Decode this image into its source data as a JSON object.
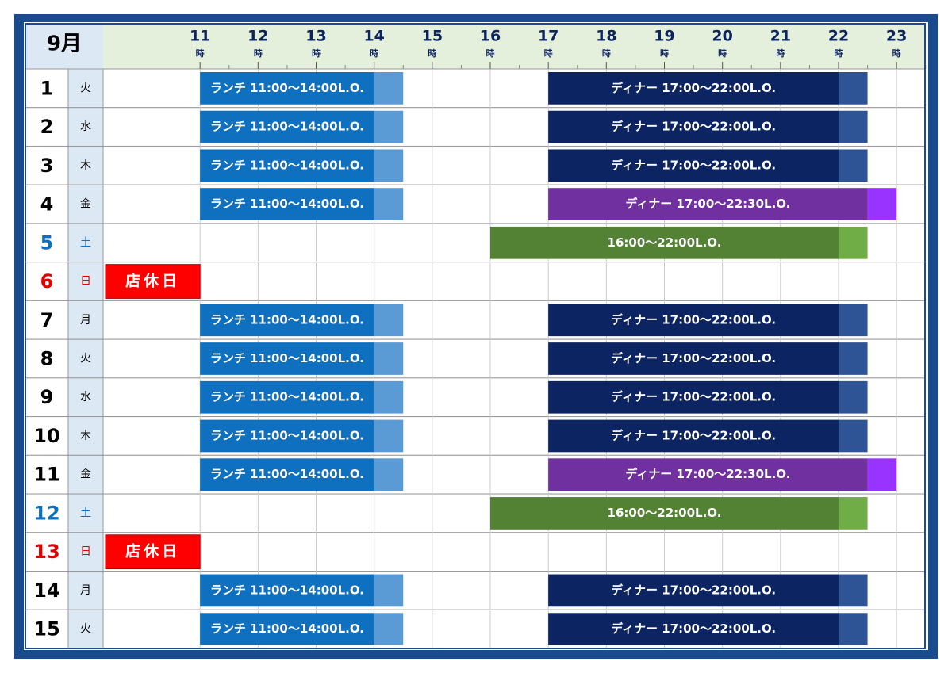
{
  "header": {
    "month": "9月",
    "hour_suffix": "時",
    "hours": [
      11,
      12,
      13,
      14,
      15,
      16,
      17,
      18,
      19,
      20,
      21,
      22,
      23
    ],
    "xlim": [
      9.33,
      23.49
    ]
  },
  "rows": [
    {
      "day": "1",
      "weekday": "火",
      "color": "#000000",
      "bars": [
        {
          "label": "ランチ 11:00〜14:00L.O.",
          "start": 11,
          "lo": 14,
          "end": 14.5,
          "color": "#1070c0",
          "tail_color": "#5b9bd5"
        },
        {
          "label": "ディナー 17:00〜22:00L.O.",
          "start": 17,
          "lo": 22,
          "end": 22.5,
          "color": "#0c2461",
          "tail_color": "#2f5496"
        }
      ]
    },
    {
      "day": "2",
      "weekday": "水",
      "color": "#000000",
      "bars": [
        {
          "label": "ランチ 11:00〜14:00L.O.",
          "start": 11,
          "lo": 14,
          "end": 14.5,
          "color": "#1070c0",
          "tail_color": "#5b9bd5"
        },
        {
          "label": "ディナー 17:00〜22:00L.O.",
          "start": 17,
          "lo": 22,
          "end": 22.5,
          "color": "#0c2461",
          "tail_color": "#2f5496"
        }
      ]
    },
    {
      "day": "3",
      "weekday": "木",
      "color": "#000000",
      "bars": [
        {
          "label": "ランチ 11:00〜14:00L.O.",
          "start": 11,
          "lo": 14,
          "end": 14.5,
          "color": "#1070c0",
          "tail_color": "#5b9bd5"
        },
        {
          "label": "ディナー 17:00〜22:00L.O.",
          "start": 17,
          "lo": 22,
          "end": 22.5,
          "color": "#0c2461",
          "tail_color": "#2f5496"
        }
      ]
    },
    {
      "day": "4",
      "weekday": "金",
      "color": "#000000",
      "bars": [
        {
          "label": "ランチ 11:00〜14:00L.O.",
          "start": 11,
          "lo": 14,
          "end": 14.5,
          "color": "#1070c0",
          "tail_color": "#5b9bd5"
        },
        {
          "label": "ディナー 17:00〜22:30L.O.",
          "start": 17,
          "lo": 22.5,
          "end": 23,
          "color": "#7030a0",
          "tail_color": "#9933ff"
        }
      ]
    },
    {
      "day": "5",
      "weekday": "土",
      "color": "#1070c0",
      "bars": [
        {
          "label": "16:00〜22:00L.O.",
          "start": 16,
          "lo": 22,
          "end": 22.5,
          "color": "#548235",
          "tail_color": "#70ad47"
        }
      ]
    },
    {
      "day": "6",
      "weekday": "日",
      "color": "#e00000",
      "closed": "店休日"
    },
    {
      "day": "7",
      "weekday": "月",
      "color": "#000000",
      "bars": [
        {
          "label": "ランチ 11:00〜14:00L.O.",
          "start": 11,
          "lo": 14,
          "end": 14.5,
          "color": "#1070c0",
          "tail_color": "#5b9bd5"
        },
        {
          "label": "ディナー 17:00〜22:00L.O.",
          "start": 17,
          "lo": 22,
          "end": 22.5,
          "color": "#0c2461",
          "tail_color": "#2f5496"
        }
      ]
    },
    {
      "day": "8",
      "weekday": "火",
      "color": "#000000",
      "bars": [
        {
          "label": "ランチ 11:00〜14:00L.O.",
          "start": 11,
          "lo": 14,
          "end": 14.5,
          "color": "#1070c0",
          "tail_color": "#5b9bd5"
        },
        {
          "label": "ディナー 17:00〜22:00L.O.",
          "start": 17,
          "lo": 22,
          "end": 22.5,
          "color": "#0c2461",
          "tail_color": "#2f5496"
        }
      ]
    },
    {
      "day": "9",
      "weekday": "水",
      "color": "#000000",
      "bars": [
        {
          "label": "ランチ 11:00〜14:00L.O.",
          "start": 11,
          "lo": 14,
          "end": 14.5,
          "color": "#1070c0",
          "tail_color": "#5b9bd5"
        },
        {
          "label": "ディナー 17:00〜22:00L.O.",
          "start": 17,
          "lo": 22,
          "end": 22.5,
          "color": "#0c2461",
          "tail_color": "#2f5496"
        }
      ]
    },
    {
      "day": "10",
      "weekday": "木",
      "color": "#000000",
      "bars": [
        {
          "label": "ランチ 11:00〜14:00L.O.",
          "start": 11,
          "lo": 14,
          "end": 14.5,
          "color": "#1070c0",
          "tail_color": "#5b9bd5"
        },
        {
          "label": "ディナー 17:00〜22:00L.O.",
          "start": 17,
          "lo": 22,
          "end": 22.5,
          "color": "#0c2461",
          "tail_color": "#2f5496"
        }
      ]
    },
    {
      "day": "11",
      "weekday": "金",
      "color": "#000000",
      "bars": [
        {
          "label": "ランチ 11:00〜14:00L.O.",
          "start": 11,
          "lo": 14,
          "end": 14.5,
          "color": "#1070c0",
          "tail_color": "#5b9bd5"
        },
        {
          "label": "ディナー 17:00〜22:30L.O.",
          "start": 17,
          "lo": 22.5,
          "end": 23,
          "color": "#7030a0",
          "tail_color": "#9933ff"
        }
      ]
    },
    {
      "day": "12",
      "weekday": "土",
      "color": "#1070c0",
      "bars": [
        {
          "label": "16:00〜22:00L.O.",
          "start": 16,
          "lo": 22,
          "end": 22.5,
          "color": "#548235",
          "tail_color": "#70ad47"
        }
      ]
    },
    {
      "day": "13",
      "weekday": "日",
      "color": "#e00000",
      "closed": "店休日"
    },
    {
      "day": "14",
      "weekday": "月",
      "color": "#000000",
      "bars": [
        {
          "label": "ランチ 11:00〜14:00L.O.",
          "start": 11,
          "lo": 14,
          "end": 14.5,
          "color": "#1070c0",
          "tail_color": "#5b9bd5"
        },
        {
          "label": "ディナー 17:00〜22:00L.O.",
          "start": 17,
          "lo": 22,
          "end": 22.5,
          "color": "#0c2461",
          "tail_color": "#2f5496"
        }
      ]
    },
    {
      "day": "15",
      "weekday": "火",
      "color": "#000000",
      "bars": [
        {
          "label": "ランチ 11:00〜14:00L.O.",
          "start": 11,
          "lo": 14,
          "end": 14.5,
          "color": "#1070c0",
          "tail_color": "#5b9bd5"
        },
        {
          "label": "ディナー 17:00〜22:00L.O.",
          "start": 17,
          "lo": 22,
          "end": 22.5,
          "color": "#0c2461",
          "tail_color": "#2f5496"
        }
      ]
    }
  ]
}
